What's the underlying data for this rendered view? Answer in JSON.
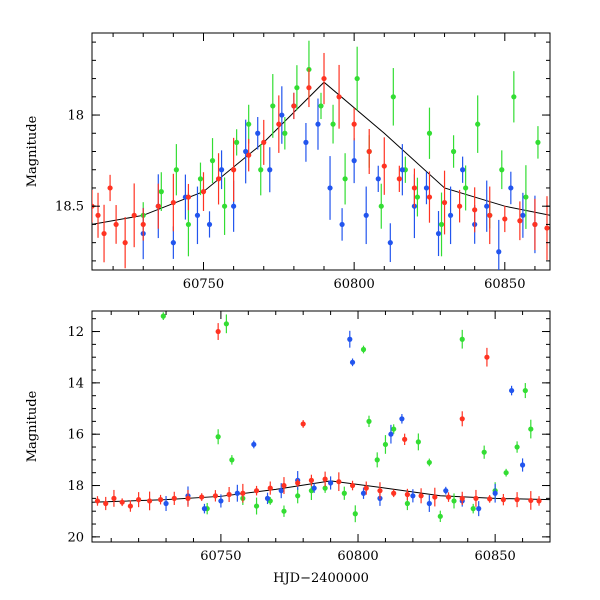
{
  "chart_data": [
    {
      "type": "scatter",
      "title": "",
      "xlabel": "",
      "ylabel": "Magnitude",
      "xlim": [
        60713,
        60865
      ],
      "ylim": [
        18.85,
        17.55
      ],
      "x_ticks": [
        60750,
        60800,
        60850
      ],
      "y_ticks": [
        18,
        18.5
      ],
      "y_tick_labels": [
        "18",
        "18.5"
      ],
      "grid": false,
      "legend": "none",
      "series": [
        {
          "color": "#33dd33",
          "values_desc": "",
          "x": [
            60730,
            60736,
            60741,
            60745,
            60749,
            60753,
            60757,
            60761,
            60765,
            60769,
            60773,
            60777,
            60781,
            60785,
            60789,
            60793,
            60797,
            60801,
            60805,
            60809,
            60813,
            60817,
            60821,
            60825,
            60829,
            60833,
            60837,
            60841,
            60845,
            60849,
            60853,
            60857,
            60861
          ],
          "y": [
            18.55,
            18.42,
            18.3,
            18.6,
            18.35,
            18.25,
            18.5,
            18.15,
            18.05,
            18.3,
            17.95,
            18.1,
            17.85,
            17.75,
            17.95,
            18.05,
            18.35,
            17.8,
            18.2,
            18.5,
            17.9,
            18.3,
            18.45,
            18.1,
            18.6,
            18.2,
            18.4,
            18.05,
            18.55,
            18.3,
            17.9,
            18.45,
            18.15
          ]
        },
        {
          "color": "#2255ee",
          "x": [
            60730,
            60735,
            60740,
            60744,
            60748,
            60752,
            60756,
            60760,
            60764,
            60768,
            60772,
            60776,
            60780,
            60784,
            60788,
            60792,
            60796,
            60800,
            60804,
            60808,
            60812,
            60816,
            60820,
            60824,
            60828,
            60832,
            60836,
            60840,
            60844,
            60848,
            60852,
            60856,
            60860
          ],
          "y": [
            18.65,
            18.5,
            18.7,
            18.45,
            18.55,
            18.6,
            18.3,
            18.5,
            18.2,
            18.1,
            18.3,
            18.0,
            17.95,
            18.15,
            18.05,
            18.4,
            18.6,
            18.25,
            18.55,
            18.35,
            18.7,
            18.3,
            18.5,
            18.4,
            18.65,
            18.55,
            18.3,
            18.6,
            18.5,
            18.75,
            18.4,
            18.55,
            18.6
          ]
        },
        {
          "color": "#ff3322",
          "x": [
            60713,
            60715,
            60717,
            60719,
            60721,
            60724,
            60727,
            60730,
            60735,
            60740,
            60745,
            60750,
            60755,
            60760,
            60765,
            60770,
            60775,
            60780,
            60785,
            60790,
            60795,
            60800,
            60805,
            60810,
            60815,
            60820,
            60825,
            60830,
            60835,
            60840,
            60845,
            60850,
            60855,
            60860,
            60864
          ],
          "y": [
            18.5,
            18.55,
            18.65,
            18.4,
            18.6,
            18.7,
            18.55,
            18.6,
            18.5,
            18.48,
            18.45,
            18.42,
            18.35,
            18.3,
            18.22,
            18.15,
            18.05,
            17.95,
            17.85,
            17.8,
            17.9,
            18.05,
            18.2,
            18.28,
            18.35,
            18.4,
            18.45,
            18.48,
            18.5,
            18.52,
            18.55,
            18.57,
            18.58,
            18.6,
            18.62
          ]
        }
      ],
      "model_curve": {
        "x": [
          60713,
          60730,
          60750,
          60770,
          60790,
          60810,
          60830,
          60850,
          60865
        ],
        "y": [
          18.6,
          18.55,
          18.42,
          18.15,
          17.82,
          18.1,
          18.4,
          18.5,
          18.55
        ]
      }
    },
    {
      "type": "scatter",
      "title": "",
      "xlabel": "HJD−2400000",
      "ylabel": "Magnitude",
      "xlim": [
        60703,
        60870
      ],
      "ylim": [
        20.2,
        11.2
      ],
      "x_ticks": [
        60750,
        60800,
        60850
      ],
      "y_ticks": [
        12,
        14,
        16,
        18,
        20
      ],
      "grid": false,
      "legend": "none",
      "series": [
        {
          "color": "#33dd33",
          "x": [
            60729,
            60745,
            60749,
            60752,
            60754,
            60758,
            60763,
            60768,
            60773,
            60778,
            60783,
            60788,
            60795,
            60799,
            60802,
            60804,
            60807,
            60810,
            60813,
            60818,
            60822,
            60826,
            60830,
            60835,
            60838,
            60842,
            60846,
            60850,
            60854,
            60858,
            60861,
            60863
          ],
          "y": [
            11.4,
            18.9,
            16.1,
            11.7,
            17.0,
            18.5,
            18.8,
            18.6,
            19.0,
            18.4,
            18.2,
            18.1,
            18.3,
            19.1,
            12.7,
            15.5,
            17.0,
            16.4,
            15.8,
            18.7,
            16.3,
            17.1,
            19.2,
            18.6,
            12.3,
            18.9,
            16.7,
            18.2,
            17.5,
            16.5,
            14.3,
            15.8
          ]
        },
        {
          "color": "#2255ee",
          "x": [
            60730,
            60738,
            60744,
            60750,
            60756,
            60762,
            60767,
            60772,
            60778,
            60784,
            60790,
            60797,
            60798,
            60802,
            60808,
            60812,
            60816,
            60820,
            60826,
            60832,
            60838,
            60844,
            60850,
            60856,
            60860
          ],
          "y": [
            18.7,
            18.4,
            18.9,
            18.6,
            18.3,
            16.4,
            18.5,
            18.2,
            17.8,
            18.1,
            17.9,
            12.3,
            13.2,
            18.3,
            18.5,
            16.0,
            15.4,
            18.4,
            18.7,
            18.2,
            18.6,
            18.9,
            18.3,
            14.3,
            17.2
          ]
        },
        {
          "color": "#ff3322",
          "x": [
            60705,
            60708,
            60711,
            60714,
            60717,
            60720,
            60724,
            60728,
            60733,
            60738,
            60743,
            60748,
            60753,
            60758,
            60763,
            60768,
            60773,
            60778,
            60783,
            60788,
            60793,
            60798,
            60803,
            60808,
            60813,
            60818,
            60823,
            60828,
            60833,
            60838,
            60843,
            60848,
            60853,
            60858,
            60863,
            60866
          ],
          "y": [
            18.6,
            18.7,
            18.5,
            18.65,
            18.8,
            18.55,
            18.6,
            18.55,
            18.5,
            18.5,
            18.45,
            18.4,
            18.35,
            18.3,
            18.2,
            18.1,
            18.0,
            17.9,
            17.8,
            17.75,
            17.85,
            18.0,
            18.1,
            18.2,
            18.3,
            18.35,
            18.4,
            18.45,
            18.45,
            18.5,
            18.5,
            18.52,
            18.55,
            18.55,
            18.58,
            18.6
          ]
        },
        {
          "color": "#ff3322",
          "role": "outliers",
          "x": [
            60749,
            60780,
            60817,
            60838,
            60847
          ],
          "y": [
            12.0,
            15.6,
            16.2,
            15.4,
            13.0
          ]
        }
      ],
      "model_curve": {
        "x": [
          60703,
          60730,
          60750,
          60770,
          60790,
          60810,
          60830,
          60850,
          60870
        ],
        "y": [
          18.65,
          18.55,
          18.42,
          18.15,
          17.82,
          18.1,
          18.4,
          18.5,
          18.55
        ]
      }
    }
  ]
}
